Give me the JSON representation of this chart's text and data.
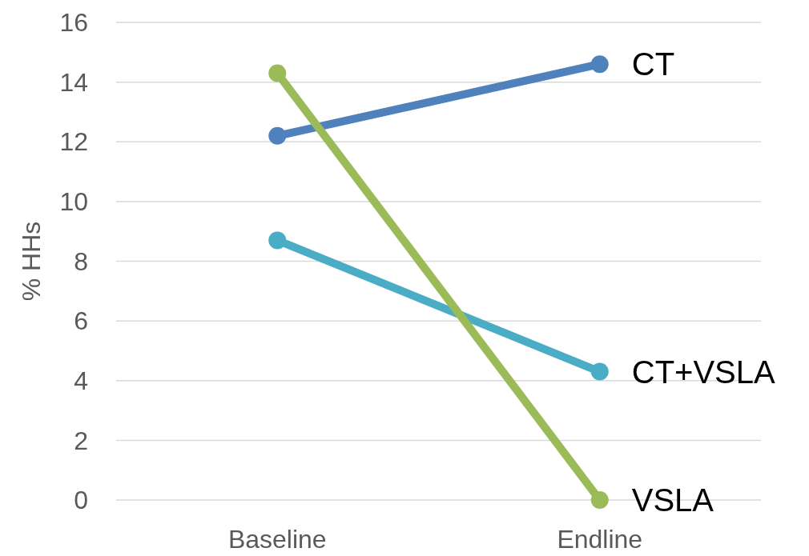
{
  "chart_data": {
    "type": "line",
    "ylabel": "% HHs",
    "categories": [
      "Baseline",
      "Endline"
    ],
    "series": [
      {
        "name": "CT",
        "color": "#4f81bd",
        "values": [
          12.2,
          14.6
        ]
      },
      {
        "name": "CT+VSLA",
        "color": "#4bacc6",
        "values": [
          8.7,
          4.3
        ]
      },
      {
        "name": "VSLA",
        "color": "#9bbb59",
        "values": [
          14.3,
          0
        ]
      }
    ],
    "ylim": [
      0,
      16
    ],
    "yticks": [
      0,
      2,
      4,
      6,
      8,
      10,
      12,
      14,
      16
    ],
    "grid": "y",
    "legend": false,
    "marker": "circle",
    "line_style": "solid"
  }
}
